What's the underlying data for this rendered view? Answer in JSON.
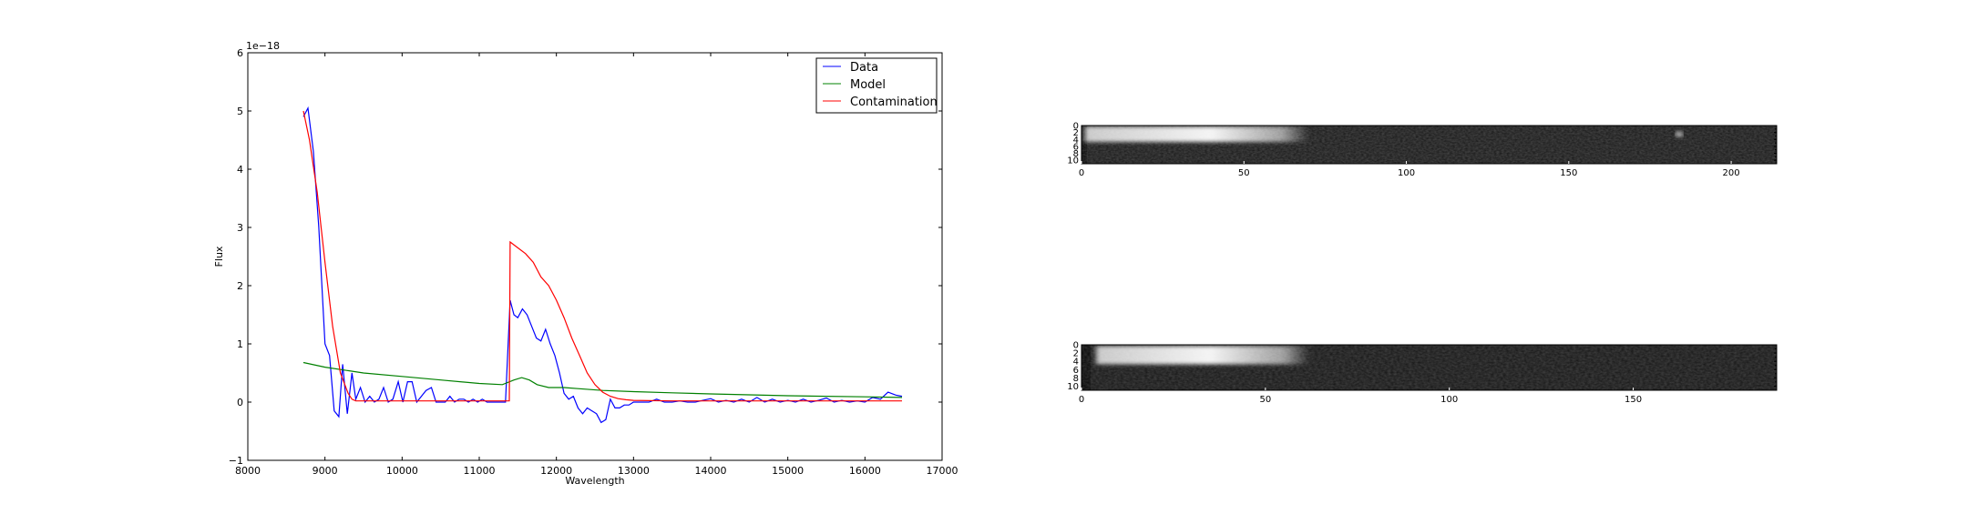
{
  "chart_data": [
    {
      "type": "line",
      "title": "",
      "xlabel": "Wavelength",
      "ylabel": "Flux",
      "y_offset_label": "1e−18",
      "xlim": [
        8000,
        17000
      ],
      "ylim": [
        -1,
        6
      ],
      "x_ticks": [
        8000,
        9000,
        10000,
        11000,
        12000,
        13000,
        14000,
        15000,
        16000,
        17000
      ],
      "y_ticks": [
        -1,
        0,
        1,
        2,
        3,
        4,
        5,
        6
      ],
      "grid": false,
      "legend_position": "top-right",
      "series": [
        {
          "name": "Data",
          "color": "#0000ff",
          "x": [
            8720,
            8780,
            8850,
            8920,
            9000,
            9060,
            9120,
            9180,
            9230,
            9290,
            9350,
            9400,
            9460,
            9520,
            9580,
            9640,
            9700,
            9760,
            9820,
            9880,
            9950,
            10010,
            10070,
            10130,
            10190,
            10250,
            10310,
            10380,
            10440,
            10500,
            10560,
            10620,
            10680,
            10740,
            10800,
            10860,
            10920,
            10980,
            11040,
            11100,
            11160,
            11220,
            11280,
            11340,
            11400,
            11450,
            11500,
            11560,
            11620,
            11680,
            11740,
            11800,
            11860,
            11920,
            11980,
            12040,
            12100,
            12160,
            12220,
            12280,
            12340,
            12400,
            12460,
            12520,
            12580,
            12640,
            12700,
            12760,
            12820,
            12880,
            12940,
            13000,
            13100,
            13200,
            13300,
            13400,
            13500,
            13600,
            13700,
            13800,
            13900,
            14000,
            14100,
            14200,
            14300,
            14400,
            14500,
            14600,
            14700,
            14800,
            14900,
            15000,
            15100,
            15200,
            15300,
            15400,
            15500,
            15600,
            15700,
            15800,
            15900,
            16000,
            16100,
            16200,
            16300,
            16400,
            16480
          ],
          "y": [
            4.9,
            5.05,
            4.3,
            3.0,
            1.0,
            0.8,
            -0.15,
            -0.25,
            0.65,
            -0.2,
            0.5,
            0.05,
            0.25,
            0.0,
            0.1,
            0.0,
            0.05,
            0.25,
            0.0,
            0.05,
            0.35,
            0.0,
            0.35,
            0.35,
            0.0,
            0.1,
            0.2,
            0.25,
            0.0,
            0.0,
            0.0,
            0.1,
            0.0,
            0.05,
            0.05,
            0.0,
            0.05,
            0.0,
            0.05,
            0.0,
            0.0,
            0.0,
            0.0,
            0.0,
            1.75,
            1.5,
            1.45,
            1.6,
            1.5,
            1.3,
            1.1,
            1.05,
            1.25,
            1.0,
            0.8,
            0.5,
            0.15,
            0.05,
            0.1,
            -0.1,
            -0.2,
            -0.1,
            -0.15,
            -0.2,
            -0.35,
            -0.3,
            0.05,
            -0.1,
            -0.1,
            -0.05,
            -0.05,
            0.0,
            0.0,
            0.0,
            0.05,
            0.0,
            0.0,
            0.02,
            0.0,
            0.0,
            0.03,
            0.06,
            0.0,
            0.03,
            0.0,
            0.05,
            0.0,
            0.08,
            0.0,
            0.05,
            0.0,
            0.03,
            0.0,
            0.05,
            0.0,
            0.03,
            0.07,
            0.0,
            0.03,
            0.0,
            0.02,
            0.0,
            0.08,
            0.05,
            0.17,
            0.12,
            0.1
          ]
        },
        {
          "name": "Model",
          "color": "#008000",
          "x": [
            8720,
            9000,
            9500,
            10000,
            10500,
            11000,
            11300,
            11450,
            11550,
            11650,
            11750,
            11900,
            12100,
            12300,
            12600,
            13000,
            13500,
            14000,
            15000,
            16000,
            16480
          ],
          "y": [
            0.68,
            0.6,
            0.5,
            0.44,
            0.38,
            0.32,
            0.3,
            0.38,
            0.42,
            0.38,
            0.3,
            0.25,
            0.25,
            0.23,
            0.2,
            0.18,
            0.16,
            0.14,
            0.11,
            0.09,
            0.08
          ]
        },
        {
          "name": "Contamination",
          "color": "#ff0000",
          "x": [
            8720,
            8800,
            8900,
            9000,
            9100,
            9200,
            9300,
            9350,
            9400,
            10000,
            10500,
            11000,
            11390,
            11400,
            11500,
            11600,
            11700,
            11800,
            11900,
            12000,
            12100,
            12200,
            12300,
            12400,
            12500,
            12600,
            12700,
            12800,
            12900,
            13000,
            13500,
            16480
          ],
          "y": [
            5.0,
            4.5,
            3.6,
            2.4,
            1.3,
            0.5,
            0.15,
            0.05,
            0.02,
            0.02,
            0.02,
            0.02,
            0.02,
            2.75,
            2.65,
            2.55,
            2.4,
            2.15,
            2.0,
            1.75,
            1.45,
            1.1,
            0.8,
            0.5,
            0.3,
            0.17,
            0.1,
            0.06,
            0.04,
            0.03,
            0.02,
            0.02
          ]
        }
      ]
    },
    {
      "type": "heatmap",
      "title": "",
      "xlim": [
        0,
        214
      ],
      "ylim": [
        0,
        11
      ],
      "x_ticks": [
        0,
        50,
        100,
        150,
        200
      ],
      "y_ticks": [
        0,
        2,
        4,
        6,
        8,
        10
      ],
      "colormap": "gray",
      "bright_band": {
        "x_start": 1,
        "x_end": 70,
        "y_center": 2.5,
        "peak_x": 40
      },
      "bright_spot": {
        "x": 184,
        "y": 2.5
      }
    },
    {
      "type": "heatmap",
      "title": "",
      "xlim": [
        0,
        189
      ],
      "ylim": [
        0,
        11
      ],
      "x_ticks": [
        0,
        50,
        100,
        150
      ],
      "y_ticks": [
        0,
        2,
        4,
        6,
        8,
        10
      ],
      "colormap": "gray",
      "bright_band": {
        "x_start": 4,
        "x_end": 62,
        "y_center": 2.5,
        "peak_x": 35
      }
    }
  ]
}
